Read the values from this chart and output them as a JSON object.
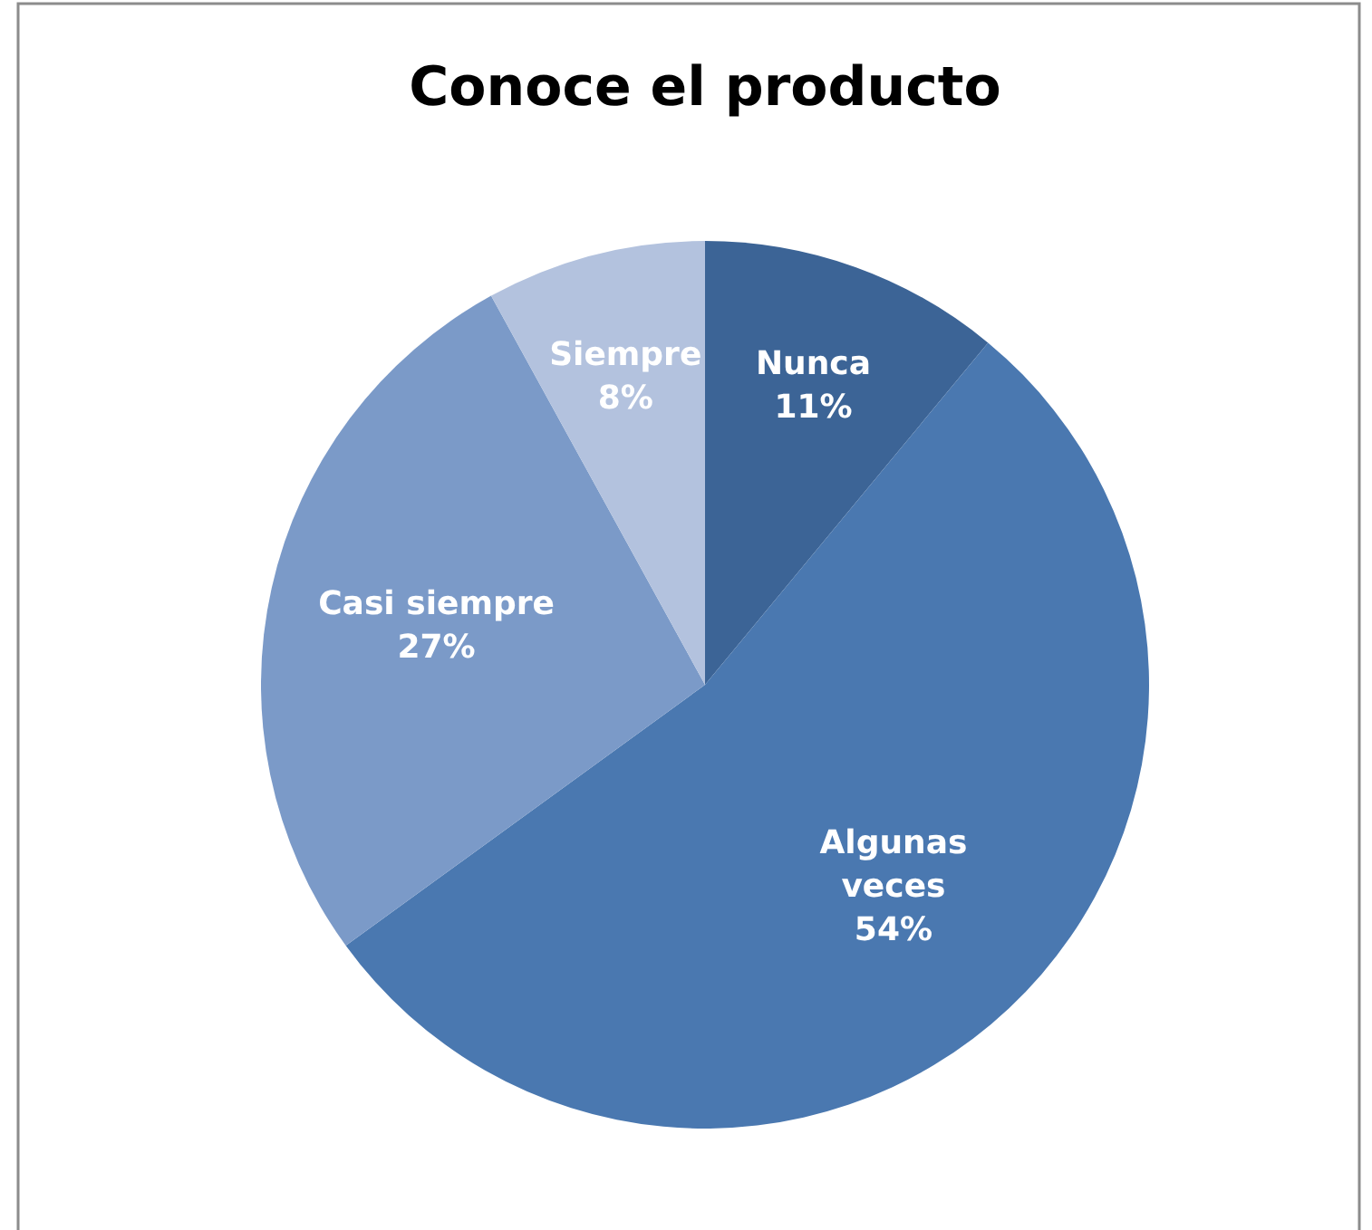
{
  "chart_data": {
    "type": "pie",
    "title": "Conoce el producto",
    "categories": [
      "Nunca",
      "Algunas veces",
      "Casi siempre",
      "Siempre"
    ],
    "values": [
      11,
      54,
      27,
      8
    ],
    "value_labels": [
      "11%",
      "54%",
      "27%",
      "8%"
    ],
    "colors": [
      "#3c6496",
      "#4a78b0",
      "#7b9ac8",
      "#b3c2de"
    ]
  }
}
